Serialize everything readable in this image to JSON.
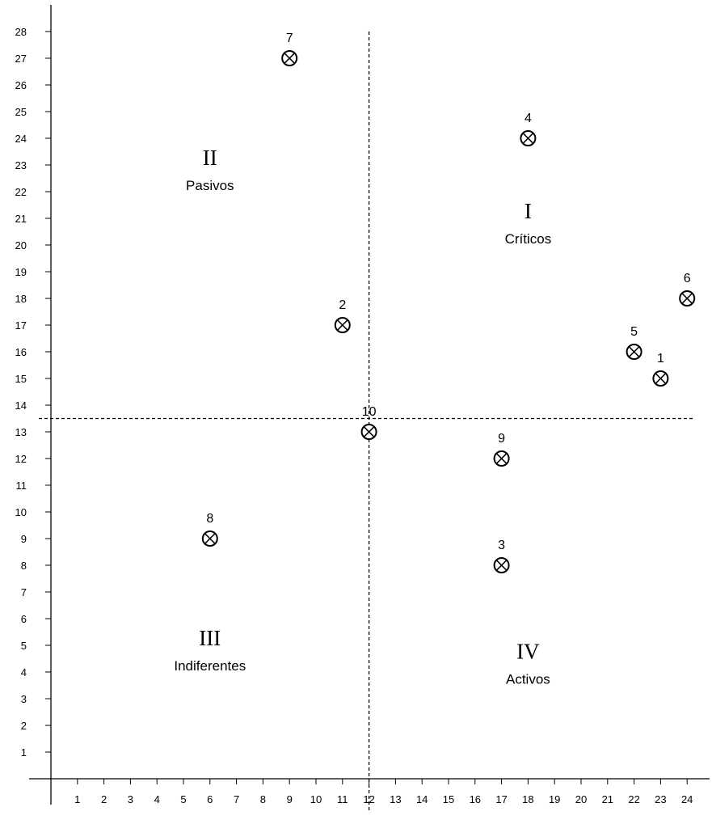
{
  "chart_data": {
    "type": "scatter",
    "xlim": [
      0,
      24
    ],
    "ylim": [
      0,
      28
    ],
    "x_ticks": [
      1,
      2,
      3,
      4,
      5,
      6,
      7,
      8,
      9,
      10,
      11,
      12,
      13,
      14,
      15,
      16,
      17,
      18,
      19,
      20,
      21,
      22,
      23,
      24
    ],
    "y_ticks": [
      1,
      2,
      3,
      4,
      5,
      6,
      7,
      8,
      9,
      10,
      11,
      12,
      13,
      14,
      15,
      16,
      17,
      18,
      19,
      20,
      21,
      22,
      23,
      24,
      25,
      26,
      27,
      28
    ],
    "grid": false,
    "marker": "circled-x",
    "dividers": {
      "x": 12,
      "y": 13.5,
      "style": "dashed"
    },
    "points": [
      {
        "label": "1",
        "x": 23,
        "y": 15
      },
      {
        "label": "2",
        "x": 11,
        "y": 17
      },
      {
        "label": "3",
        "x": 17,
        "y": 8
      },
      {
        "label": "4",
        "x": 18,
        "y": 24
      },
      {
        "label": "5",
        "x": 22,
        "y": 16
      },
      {
        "label": "6",
        "x": 24,
        "y": 18
      },
      {
        "label": "7",
        "x": 9,
        "y": 27
      },
      {
        "label": "8",
        "x": 6,
        "y": 9
      },
      {
        "label": "9",
        "x": 17,
        "y": 12
      },
      {
        "label": "10",
        "x": 12,
        "y": 13
      }
    ],
    "quadrants": [
      {
        "numeral": "I",
        "name": "Críticos",
        "x": 18,
        "y": 21
      },
      {
        "numeral": "II",
        "name": "Pasivos",
        "x": 6,
        "y": 23
      },
      {
        "numeral": "III",
        "name": "Indiferentes",
        "x": 6,
        "y": 5
      },
      {
        "numeral": "IV",
        "name": "Activos",
        "x": 18,
        "y": 4.5
      }
    ]
  }
}
